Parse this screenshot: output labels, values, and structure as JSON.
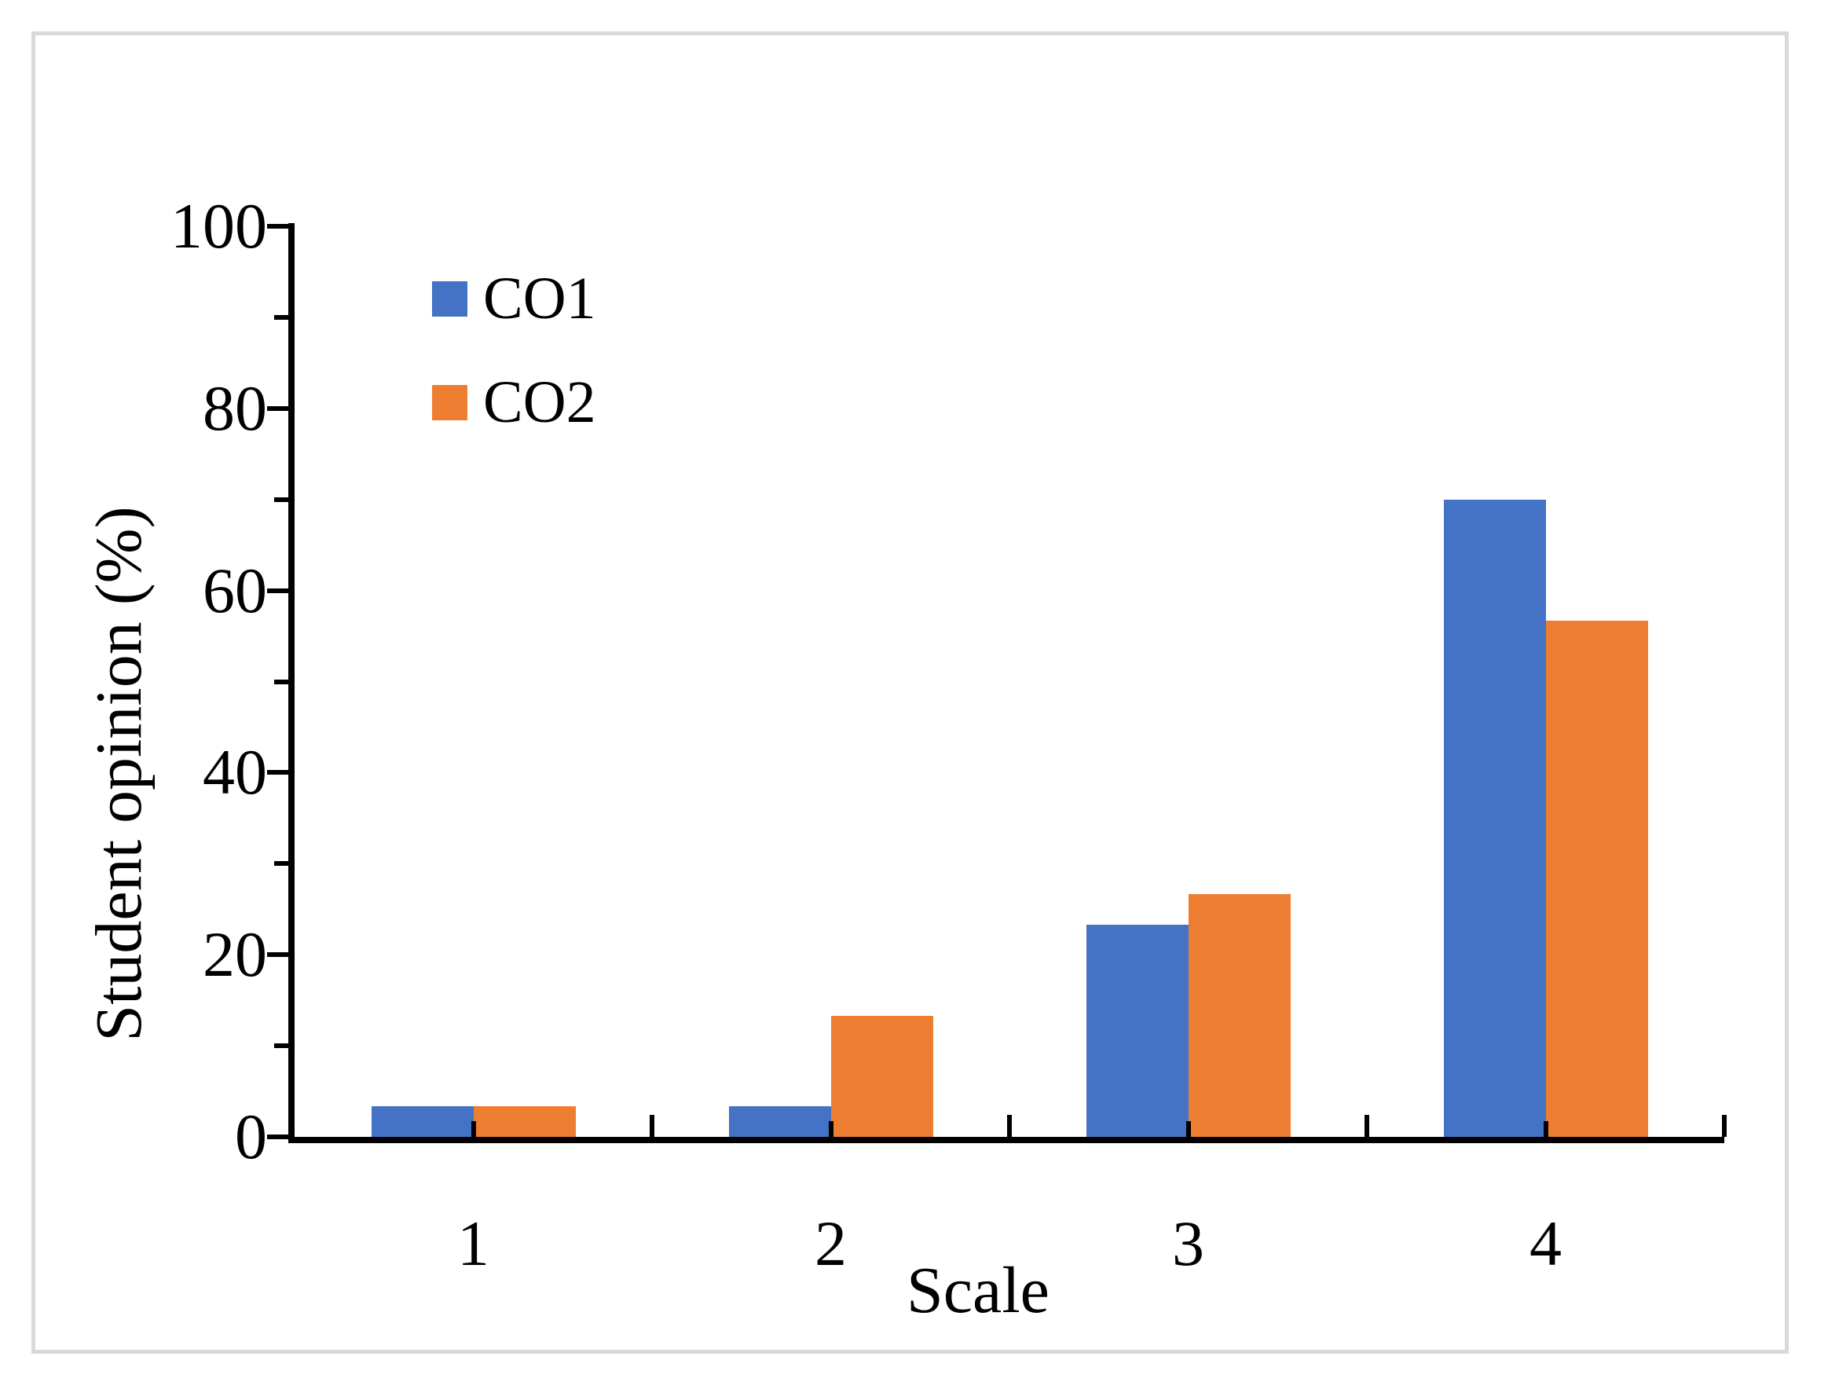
{
  "chart_data": {
    "type": "bar",
    "categories": [
      "1",
      "2",
      "3",
      "4"
    ],
    "series": [
      {
        "name": "CO1",
        "color": "#4472C4",
        "values": [
          3.33,
          3.33,
          23.33,
          70.0
        ]
      },
      {
        "name": "CO2",
        "color": "#ED7D31",
        "values": [
          3.33,
          13.33,
          26.67,
          56.67
        ]
      }
    ],
    "title": "",
    "xlabel": "Scale",
    "ylabel": "Student opinion (%)",
    "ylim": [
      0,
      100
    ],
    "yticks": [
      0,
      20,
      40,
      60,
      80,
      100
    ],
    "y_minor_tick_step": 10,
    "grid": "off",
    "legend_position": "upper-left-inside"
  },
  "figure": {
    "background_color": "#FFFFFF",
    "frame_border_color": "#D9D9D9",
    "axis_color": "#000000",
    "text_color": "#000000"
  }
}
